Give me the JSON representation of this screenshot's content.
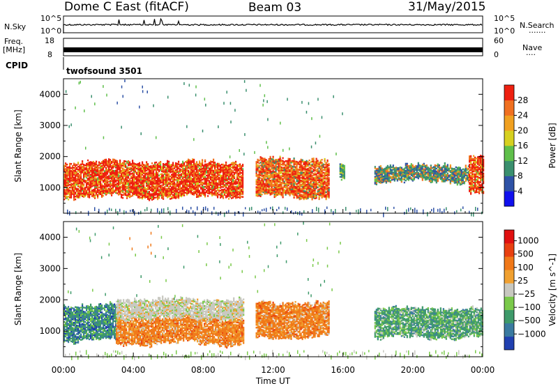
{
  "header": {
    "radar": "Dome C East (fitACF)",
    "beam": "Beam 03",
    "date": "31/May/2015"
  },
  "noise_panel": {
    "left_label": "N.Sky",
    "right_label": "N.Search",
    "right_dots": ".......",
    "left_ticks": [
      "10^5",
      "10^0"
    ],
    "right_ticks": [
      "10^5",
      "10^0"
    ]
  },
  "freq_panel": {
    "left_label_1": "Freq.",
    "left_label_2": "[MHz]",
    "right_label": "Nave",
    "right_dots": "....",
    "left_ticks": [
      "18",
      "8"
    ],
    "right_ticks": [
      "60",
      "0"
    ]
  },
  "cpid": {
    "label": "CPID",
    "value": "twofsound 3501"
  },
  "colors": {
    "power_scale": [
      "#1010ee",
      "#2e52a6",
      "#3a8f6e",
      "#5fbf4a",
      "#d6d020",
      "#f0a020",
      "#f07020",
      "#ee2010"
    ],
    "velocity_scale": [
      "#2040b0",
      "#3a7aa0",
      "#3e9a6a",
      "#7ac94a",
      "#c8c8c0",
      "#f0a030",
      "#f07818",
      "#e84010",
      "#e01010"
    ]
  },
  "chart_data": [
    {
      "type": "heatmap",
      "name": "power",
      "ylabel": "Slant Range [km]",
      "colorbar_label": "Power [dB]",
      "colorbar_ticks": [
        "28",
        "24",
        "20",
        "16",
        "12",
        "8",
        "4"
      ],
      "x_range_hours": [
        0,
        24
      ],
      "ylim": [
        180,
        4500
      ],
      "yticks": [
        1000,
        2000,
        3000,
        4000
      ],
      "echo_regions": [
        {
          "t0": 0.0,
          "t1": 10.3,
          "r0": 700,
          "r1": 1800,
          "dominant": "red/orange"
        },
        {
          "t0": 11.0,
          "t1": 15.2,
          "r0": 700,
          "r1": 1900,
          "dominant": "orange/red"
        },
        {
          "t0": 15.8,
          "t1": 16.1,
          "r0": 1200,
          "r1": 1700,
          "dominant": "green"
        },
        {
          "t0": 17.8,
          "t1": 23.2,
          "r0": 1200,
          "r1": 1700,
          "dominant": "green/blue"
        },
        {
          "t0": 23.2,
          "t1": 24.0,
          "r0": 800,
          "r1": 2000,
          "dominant": "red"
        }
      ]
    },
    {
      "type": "heatmap",
      "name": "velocity",
      "ylabel": "Slant Range [km]",
      "colorbar_label": "Velocity [m s^-1]",
      "colorbar_ticks": [
        "1000",
        "500",
        "100",
        "25",
        "−25",
        "−100",
        "−500",
        "−1000"
      ],
      "x_range_hours": [
        0,
        24
      ],
      "ylim": [
        180,
        4500
      ],
      "yticks": [
        1000,
        2000,
        3000,
        4000
      ],
      "xticks": [
        "00:00",
        "04:00",
        "08:00",
        "12:00",
        "16:00",
        "20:00",
        "00:00"
      ],
      "xlabel": "Time UT",
      "echo_regions": [
        {
          "t0": 0.0,
          "t1": 3.0,
          "r0": 700,
          "r1": 1800,
          "dominant": "green/blue"
        },
        {
          "t0": 3.0,
          "t1": 10.3,
          "r0": 600,
          "r1": 1400,
          "dominant": "orange"
        },
        {
          "t0": 3.0,
          "t1": 10.3,
          "r0": 1400,
          "r1": 2000,
          "dominant": "grey"
        },
        {
          "t0": 11.0,
          "t1": 15.2,
          "r0": 800,
          "r1": 1900,
          "dominant": "orange"
        },
        {
          "t0": 17.8,
          "t1": 24.0,
          "r0": 800,
          "r1": 1700,
          "dominant": "green"
        }
      ]
    }
  ]
}
